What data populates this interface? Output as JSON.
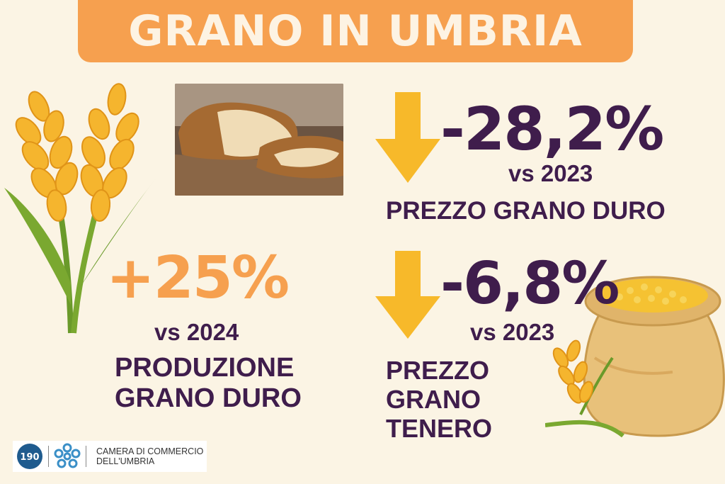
{
  "title": "GRANO IN UMBRIA",
  "stat_duro_price": {
    "value": "-28,2%",
    "comparison": "vs 2023",
    "label": "PREZZO GRANO DURO"
  },
  "stat_duro_production": {
    "value": "+25%",
    "comparison": "vs 2024",
    "label_line1": "PRODUZIONE",
    "label_line2": "GRANO DURO"
  },
  "stat_tenero_price": {
    "value": "-6,8%",
    "comparison": "vs 2023",
    "label_line1": "PREZZO",
    "label_line2": "GRANO",
    "label_line3": "TENERO"
  },
  "footer": {
    "anniversary_logo_text": "190",
    "org_line1": "CAMERA DI COMMERCIO",
    "org_line2": "DELL'UMBRIA"
  },
  "colors": {
    "background": "#fbf4e4",
    "banner": "#f6a04f",
    "text_dark": "#3f1d4c",
    "accent_orange": "#f6a04f",
    "arrow_yellow": "#f7b92a"
  },
  "icons": [
    "wheat-icon",
    "bread-photo",
    "arrow-down-icon",
    "grain-sack-icon",
    "chamber-logo-icon"
  ]
}
